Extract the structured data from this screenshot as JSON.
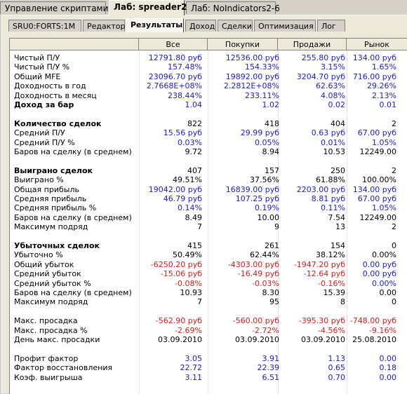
{
  "top_tabs": [
    {
      "label": "Управление скриптами",
      "active": false
    },
    {
      "label": "Лаб: spreader2",
      "active": true
    },
    {
      "label": "Лаб: NoIndicators2-6",
      "active": false
    }
  ],
  "sub_tabs": [
    {
      "label": "SRU0:FORTS:1M",
      "active": false
    },
    {
      "label": "Редактор",
      "active": false
    },
    {
      "label": "Результаты",
      "active": true
    },
    {
      "label": "Доход",
      "active": false
    },
    {
      "label": "Сделки",
      "active": false
    },
    {
      "label": "Оптимизация",
      "active": false
    },
    {
      "label": "Лог",
      "active": false
    }
  ],
  "columns": [
    "",
    "Все",
    "Покупки",
    "Продажи",
    "Рынок"
  ],
  "colors": {
    "positive": "#1a1adc",
    "negative": "#dc1a1a",
    "neutral": "#000000"
  },
  "rows": [
    {
      "label": "Чистый П/У",
      "bold": false,
      "color": "blue",
      "values": [
        "12791.80 руб",
        "12536.00 руб",
        "255.80 руб",
        "134.00 руб"
      ]
    },
    {
      "label": "Чистый П/У %",
      "bold": false,
      "color": "blue",
      "values": [
        "157.48%",
        "154.33%",
        "3.15%",
        "1.65%"
      ]
    },
    {
      "label": "Общий MFE",
      "bold": false,
      "color": "blue",
      "values": [
        "23096.70 руб",
        "19892.00 руб",
        "3204.70 руб",
        "716.00 руб"
      ]
    },
    {
      "label": "Доходность в год",
      "bold": false,
      "color": "blue",
      "values": [
        "2.7668E+08%",
        "2.2812E+08%",
        "62.63%",
        "29.26%"
      ]
    },
    {
      "label": "Доходность в месяц",
      "bold": false,
      "color": "blue",
      "values": [
        "238.44%",
        "233.11%",
        "4.08%",
        "2.13%"
      ]
    },
    {
      "label": "Доход за бар",
      "bold": true,
      "color": "blue",
      "values": [
        "1.04",
        "1.02",
        "0.02",
        "0.01"
      ]
    },
    {
      "label": "",
      "bold": false,
      "color": "black",
      "values": [
        "",
        "",
        "",
        ""
      ]
    },
    {
      "label": "Количество сделок",
      "bold": true,
      "color": "black",
      "values": [
        "822",
        "418",
        "404",
        "2"
      ]
    },
    {
      "label": "Средний П/У",
      "bold": false,
      "color": "blue",
      "values": [
        "15.56 руб",
        "29.99 руб",
        "0.63 руб",
        "67.00 руб"
      ]
    },
    {
      "label": "Средний П/У %",
      "bold": false,
      "color": "blue",
      "values": [
        "0.03%",
        "0.05%",
        "0.01%",
        "1.05%"
      ]
    },
    {
      "label": "Баров на сделку (в среднем)",
      "bold": false,
      "color": "black",
      "values": [
        "9.72",
        "8.94",
        "10.53",
        "12249.00"
      ]
    },
    {
      "label": "",
      "bold": false,
      "color": "black",
      "values": [
        "",
        "",
        "",
        ""
      ]
    },
    {
      "label": "Выиграно сделок",
      "bold": true,
      "color": "black",
      "values": [
        "407",
        "157",
        "250",
        "2"
      ]
    },
    {
      "label": "Выиграно %",
      "bold": false,
      "color": "black",
      "values": [
        "49.51%",
        "37.56%",
        "61.88%",
        "100.00%"
      ]
    },
    {
      "label": "Общая прибыль",
      "bold": false,
      "color": "blue",
      "values": [
        "19042.00 руб",
        "16839.00 руб",
        "2203.00 руб",
        "134.00 руб"
      ]
    },
    {
      "label": "Средняя прибыль",
      "bold": false,
      "color": "blue",
      "values": [
        "46.79 руб",
        "107.25 руб",
        "8.81 руб",
        "67.00 руб"
      ]
    },
    {
      "label": "Средняя прибыль %",
      "bold": false,
      "color": "blue",
      "values": [
        "0.14%",
        "0.19%",
        "0.11%",
        "1.05%"
      ]
    },
    {
      "label": "Баров на сделку (в среднем)",
      "bold": false,
      "color": "black",
      "values": [
        "8.49",
        "10.00",
        "7.54",
        "12249.00"
      ]
    },
    {
      "label": "Максимум подряд",
      "bold": false,
      "color": "black",
      "values": [
        "7",
        "9",
        "13",
        "2"
      ]
    },
    {
      "label": "",
      "bold": false,
      "color": "black",
      "values": [
        "",
        "",
        "",
        ""
      ]
    },
    {
      "label": "Убыточных сделок",
      "bold": true,
      "color": "black",
      "values": [
        "415",
        "261",
        "154",
        "0"
      ]
    },
    {
      "label": "Убыточно %",
      "bold": false,
      "color": "black",
      "values": [
        "50.49%",
        "62.44%",
        "38.12%",
        "0.00%"
      ]
    },
    {
      "label": "Общий убыток",
      "bold": false,
      "color": "red",
      "values": [
        "-6250.20 руб",
        "-4303.00 руб",
        "-1947.20 руб",
        "0.00 руб"
      ],
      "colors": [
        "red",
        "red",
        "red",
        "blue"
      ]
    },
    {
      "label": "Средний убыток",
      "bold": false,
      "color": "red",
      "values": [
        "-15.06 руб",
        "-16.49 руб",
        "-12.64 руб",
        "0.00 руб"
      ],
      "colors": [
        "red",
        "red",
        "red",
        "blue"
      ]
    },
    {
      "label": "Средний убыток %",
      "bold": false,
      "color": "red",
      "values": [
        "-0.08%",
        "-0.03%",
        "-0.16%",
        "0.00%"
      ],
      "colors": [
        "red",
        "red",
        "red",
        "blue"
      ]
    },
    {
      "label": "Баров на сделку (в среднем)",
      "bold": false,
      "color": "black",
      "values": [
        "10.93",
        "8.30",
        "15.39",
        "0.00"
      ]
    },
    {
      "label": "Максимум подряд",
      "bold": false,
      "color": "black",
      "values": [
        "7",
        "95",
        "8",
        "0"
      ]
    },
    {
      "label": "",
      "bold": false,
      "color": "black",
      "values": [
        "",
        "",
        "",
        ""
      ]
    },
    {
      "label": "Макс. просадка",
      "bold": false,
      "color": "red",
      "values": [
        "-562.90 руб",
        "-560.00 руб",
        "-395.30 руб",
        "-748.00 руб"
      ]
    },
    {
      "label": "Макс. просадка %",
      "bold": false,
      "color": "red",
      "values": [
        "-2.69%",
        "-2.72%",
        "-4.56%",
        "-9.16%"
      ]
    },
    {
      "label": "День макс. просадки",
      "bold": false,
      "color": "black",
      "values": [
        "03.09.2010",
        "03.09.2010",
        "03.09.2010",
        "25.08.2010"
      ]
    },
    {
      "label": "",
      "bold": false,
      "color": "black",
      "values": [
        "",
        "",
        "",
        ""
      ]
    },
    {
      "label": "Профит фактор",
      "bold": false,
      "color": "blue",
      "values": [
        "3.05",
        "3.91",
        "1.13",
        "0.00"
      ]
    },
    {
      "label": "Фактор восстановления",
      "bold": false,
      "color": "blue",
      "values": [
        "22.72",
        "22.39",
        "0.65",
        "0.18"
      ]
    },
    {
      "label": "Коэф. выигрыша",
      "bold": false,
      "color": "blue",
      "values": [
        "3.11",
        "6.51",
        "0.70",
        "0.00"
      ]
    }
  ]
}
